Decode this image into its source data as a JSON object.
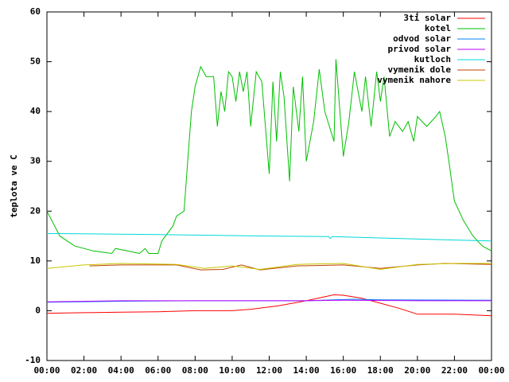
{
  "chart_data": {
    "type": "line",
    "ylabel": "teplota ve C",
    "xlim": [
      0,
      24
    ],
    "ylim": [
      -10,
      60
    ],
    "xticks": [
      {
        "value": 0,
        "label": "00:00"
      },
      {
        "value": 2,
        "label": "02:00"
      },
      {
        "value": 4,
        "label": "04:00"
      },
      {
        "value": 6,
        "label": "06:00"
      },
      {
        "value": 8,
        "label": "08:00"
      },
      {
        "value": 10,
        "label": "10:00"
      },
      {
        "value": 12,
        "label": "12:00"
      },
      {
        "value": 14,
        "label": "14:00"
      },
      {
        "value": 16,
        "label": "16:00"
      },
      {
        "value": 18,
        "label": "18:00"
      },
      {
        "value": 20,
        "label": "20:00"
      },
      {
        "value": 22,
        "label": "22:00"
      },
      {
        "value": 24,
        "label": "00:00"
      }
    ],
    "yticks": [
      -10,
      0,
      10,
      20,
      30,
      40,
      50,
      60
    ],
    "legend": "top-right",
    "series": [
      {
        "name": "3ti solar",
        "color": "#ff0000",
        "x": [
          0,
          2,
          4,
          6,
          8,
          10,
          11,
          12.5,
          14,
          15,
          15.5,
          16,
          17,
          18,
          19,
          20,
          22,
          24
        ],
        "values": [
          -0.5,
          -0.4,
          -0.3,
          -0.2,
          0,
          0,
          0.3,
          1,
          2,
          2.8,
          3.2,
          3.1,
          2.5,
          1.5,
          0.5,
          -0.7,
          -0.7,
          -1
        ]
      },
      {
        "name": "kotel",
        "color": "#00c000",
        "x": [
          0,
          0.7,
          1.5,
          2.5,
          3.5,
          3.7,
          5,
          5.3,
          5.5,
          6,
          6.2,
          6.8,
          7,
          7.4,
          7.6,
          7.8,
          8,
          8.3,
          8.6,
          9,
          9.2,
          9.4,
          9.6,
          9.8,
          10,
          10.2,
          10.4,
          10.6,
          10.8,
          11,
          11.3,
          11.6,
          12,
          12.2,
          12.4,
          12.6,
          12.8,
          13.1,
          13.3,
          13.6,
          13.8,
          14,
          14.4,
          14.7,
          15,
          15.5,
          15.6,
          16,
          16.3,
          16.6,
          17,
          17.2,
          17.5,
          17.8,
          18,
          18.2,
          18.5,
          18.8,
          19.2,
          19.5,
          19.8,
          20,
          20.5,
          21,
          21.2,
          21.5,
          21.7,
          22,
          22.5,
          23,
          23.5,
          24
        ],
        "values": [
          20,
          15,
          13,
          12,
          11.5,
          12.5,
          11.5,
          12.5,
          11.5,
          11.5,
          14,
          17,
          19,
          20,
          30,
          40,
          45,
          49,
          47,
          47,
          37,
          44,
          40,
          48,
          47,
          42,
          48,
          44,
          48,
          37,
          48,
          46,
          27.5,
          46,
          34,
          48,
          43,
          26,
          45,
          36,
          47,
          30,
          38,
          48.5,
          40,
          34,
          50.5,
          31,
          38,
          48,
          40,
          47,
          37,
          48,
          42,
          47,
          35,
          38,
          36,
          38,
          34,
          39,
          37,
          39,
          40,
          35,
          30,
          22,
          18,
          15,
          13,
          12
        ]
      },
      {
        "name": "odvod solar",
        "color": "#0080ff",
        "x": [
          0,
          4,
          8,
          14,
          16.5,
          18,
          24
        ],
        "values": [
          1.7,
          1.9,
          2,
          2,
          2.3,
          2.2,
          2.1
        ]
      },
      {
        "name": "privod solar",
        "color": "#c000ff",
        "x": [
          0,
          4,
          8,
          14,
          16,
          20,
          24
        ],
        "values": [
          1.8,
          2,
          2,
          2,
          2.1,
          2,
          2
        ]
      },
      {
        "name": "kutloch",
        "color": "#00d8d8",
        "x": [
          0,
          6,
          12,
          15.2,
          15.3,
          15.4,
          17,
          22,
          24
        ],
        "values": [
          15.5,
          15.3,
          15,
          14.9,
          14.5,
          14.9,
          14.7,
          14.2,
          14
        ]
      },
      {
        "name": "vymenik dole",
        "color": "#c04000",
        "x": [
          2.3,
          4,
          7,
          8.3,
          9.5,
          10.5,
          11.5,
          13.5,
          16,
          18,
          20,
          21.5,
          24
        ],
        "values": [
          9,
          9.2,
          9.2,
          8.2,
          8.3,
          9.2,
          8.2,
          9,
          9.2,
          8.5,
          9.2,
          9.5,
          9.3
        ]
      },
      {
        "name": "vymenik nahore",
        "color": "#c8c800",
        "x": [
          0,
          2,
          4,
          7,
          8.5,
          10,
          11.5,
          13.5,
          16,
          18,
          20,
          22,
          24
        ],
        "values": [
          8.5,
          9.2,
          9.5,
          9.3,
          8.5,
          9,
          8.3,
          9.3,
          9.5,
          8.3,
          9.3,
          9.5,
          9.5
        ]
      }
    ]
  }
}
